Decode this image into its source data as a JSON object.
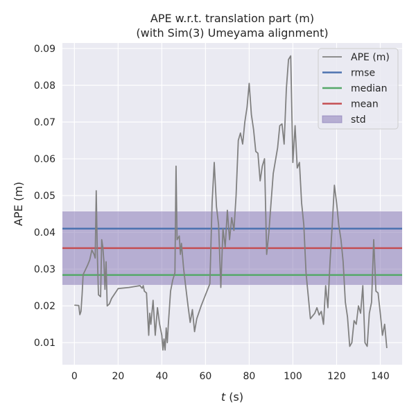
{
  "chart_data": {
    "type": "line",
    "title": "APE w.r.t. translation part (m)",
    "subtitle": "(with Sim(3) Umeyama alignment)",
    "xlabel_var": "t",
    "xlabel_unit": " (s)",
    "ylabel": "APE (m)",
    "xlim": [
      -5.5,
      150
    ],
    "ylim": [
      0.004,
      0.0915
    ],
    "xticks": [
      0,
      20,
      40,
      60,
      80,
      100,
      120,
      140
    ],
    "yticks": [
      0.01,
      0.02,
      0.03,
      0.04,
      0.05,
      0.06,
      0.07,
      0.08,
      0.09
    ],
    "grid": true,
    "legend_position": "top-right",
    "stats": {
      "rmse": 0.041,
      "median": 0.0284,
      "mean": 0.0357,
      "std_band": [
        0.0256,
        0.0458
      ]
    },
    "legend": [
      {
        "label": "APE (m)",
        "kind": "line",
        "color": "#808080"
      },
      {
        "label": "rmse",
        "kind": "line",
        "color": "#4c72b0"
      },
      {
        "label": "median",
        "kind": "line",
        "color": "#55a868"
      },
      {
        "label": "mean",
        "kind": "line",
        "color": "#c44e52"
      },
      {
        "label": "std",
        "kind": "patch",
        "color": "#8172b2"
      }
    ],
    "series": [
      {
        "name": "APE (m)",
        "color": "#808080",
        "x": [
          0,
          2,
          2.5,
          3,
          3.5,
          4,
          6,
          7,
          8,
          9,
          9.5,
          10,
          10.5,
          11,
          12,
          12.5,
          13,
          13.5,
          14,
          14.5,
          15,
          16,
          17,
          20,
          25,
          30,
          31,
          31.5,
          32,
          33,
          34,
          34.5,
          35,
          36,
          37,
          38,
          39,
          40,
          40.5,
          41,
          41.5,
          42,
          42.5,
          43,
          44,
          45,
          45.5,
          46,
          46.5,
          47,
          48,
          48.5,
          49,
          50,
          51,
          52,
          53,
          54,
          55,
          56,
          58,
          60,
          62,
          63,
          64,
          65,
          66,
          67,
          68,
          69,
          70,
          71,
          72,
          73,
          74,
          75,
          76,
          77,
          78,
          79,
          80,
          81,
          82,
          83,
          84,
          85,
          86,
          87,
          88,
          89,
          90,
          91,
          93,
          94,
          95,
          96,
          97,
          98,
          99,
          100,
          101,
          102,
          103,
          104,
          105,
          106,
          108,
          110,
          111,
          112,
          113,
          114,
          115,
          116,
          117,
          118,
          119,
          120,
          121,
          122,
          123,
          124,
          125,
          126,
          127,
          128,
          129,
          130,
          131,
          132,
          133,
          134,
          135,
          136,
          137,
          138,
          139,
          140,
          141,
          142,
          143
        ],
        "y": [
          0.0202,
          0.0201,
          0.0176,
          0.0185,
          0.023,
          0.0285,
          0.031,
          0.0325,
          0.0352,
          0.034,
          0.033,
          0.0513,
          0.034,
          0.023,
          0.0225,
          0.038,
          0.036,
          0.032,
          0.0245,
          0.032,
          0.02,
          0.0205,
          0.022,
          0.0247,
          0.025,
          0.0255,
          0.0248,
          0.0255,
          0.024,
          0.0235,
          0.012,
          0.018,
          0.015,
          0.0215,
          0.012,
          0.0195,
          0.015,
          0.012,
          0.008,
          0.011,
          0.008,
          0.014,
          0.01,
          0.015,
          0.024,
          0.027,
          0.028,
          0.029,
          0.058,
          0.038,
          0.039,
          0.034,
          0.037,
          0.03,
          0.025,
          0.02,
          0.0155,
          0.019,
          0.013,
          0.0165,
          0.02,
          0.023,
          0.026,
          0.048,
          0.059,
          0.047,
          0.042,
          0.025,
          0.041,
          0.036,
          0.046,
          0.038,
          0.044,
          0.0405,
          0.05,
          0.065,
          0.067,
          0.064,
          0.07,
          0.074,
          0.0805,
          0.072,
          0.068,
          0.062,
          0.0615,
          0.054,
          0.058,
          0.06,
          0.034,
          0.04,
          0.048,
          0.056,
          0.063,
          0.069,
          0.0695,
          0.064,
          0.079,
          0.087,
          0.088,
          0.059,
          0.069,
          0.0575,
          0.059,
          0.048,
          0.042,
          0.029,
          0.0165,
          0.018,
          0.0195,
          0.0175,
          0.0185,
          0.015,
          0.0255,
          0.0195,
          0.032,
          0.042,
          0.0528,
          0.048,
          0.042,
          0.038,
          0.032,
          0.021,
          0.017,
          0.009,
          0.01,
          0.016,
          0.015,
          0.02,
          0.018,
          0.0255,
          0.01,
          0.009,
          0.018,
          0.021,
          0.038,
          0.024,
          0.0235,
          0.018,
          0.012,
          0.015,
          0.0085
        ]
      }
    ]
  }
}
